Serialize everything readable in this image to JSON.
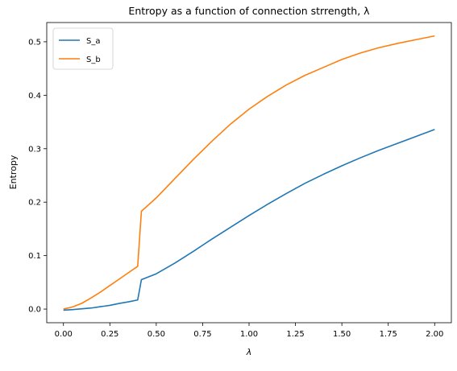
{
  "chart_data": {
    "type": "line",
    "title": "Entropy as a function of connection strrength, λ",
    "xlabel": "λ",
    "ylabel": "Entropy",
    "xlim": [
      -0.09,
      2.09
    ],
    "ylim": [
      -0.0255,
      0.536
    ],
    "xticks": [
      0.0,
      0.25,
      0.5,
      0.75,
      1.0,
      1.25,
      1.5,
      1.75,
      2.0
    ],
    "xtick_labels": [
      "0.00",
      "0.25",
      "0.50",
      "0.75",
      "1.00",
      "1.25",
      "1.50",
      "1.75",
      "2.00"
    ],
    "yticks": [
      0.0,
      0.1,
      0.2,
      0.3,
      0.4,
      0.5
    ],
    "ytick_labels": [
      "0.0",
      "0.1",
      "0.2",
      "0.3",
      "0.4",
      "0.5"
    ],
    "grid": false,
    "legend": "top-left",
    "series": [
      {
        "name": "S_a",
        "color": "#1f77b4",
        "x": [
          0.0,
          0.05,
          0.1,
          0.15,
          0.2,
          0.25,
          0.3,
          0.35,
          0.4,
          0.42,
          0.5,
          0.6,
          0.7,
          0.8,
          0.9,
          1.0,
          1.1,
          1.2,
          1.3,
          1.4,
          1.5,
          1.6,
          1.7,
          1.8,
          1.9,
          2.0
        ],
        "y": [
          -0.002,
          -0.001,
          0.0005,
          0.002,
          0.0045,
          0.007,
          0.0105,
          0.0135,
          0.017,
          0.055,
          0.066,
          0.086,
          0.108,
          0.131,
          0.153,
          0.175,
          0.196,
          0.216,
          0.235,
          0.252,
          0.268,
          0.283,
          0.297,
          0.31,
          0.323,
          0.336
        ]
      },
      {
        "name": "S_b",
        "color": "#ff7f0e",
        "x": [
          0.0,
          0.05,
          0.1,
          0.15,
          0.2,
          0.25,
          0.3,
          0.35,
          0.4,
          0.42,
          0.5,
          0.6,
          0.7,
          0.8,
          0.9,
          1.0,
          1.1,
          1.2,
          1.3,
          1.4,
          1.5,
          1.6,
          1.7,
          1.8,
          1.9,
          2.0
        ],
        "y": [
          0.0,
          0.004,
          0.011,
          0.021,
          0.032,
          0.044,
          0.056,
          0.068,
          0.08,
          0.183,
          0.208,
          0.244,
          0.28,
          0.314,
          0.346,
          0.374,
          0.398,
          0.419,
          0.437,
          0.452,
          0.467,
          0.479,
          0.489,
          0.497,
          0.504,
          0.511
        ]
      }
    ]
  }
}
